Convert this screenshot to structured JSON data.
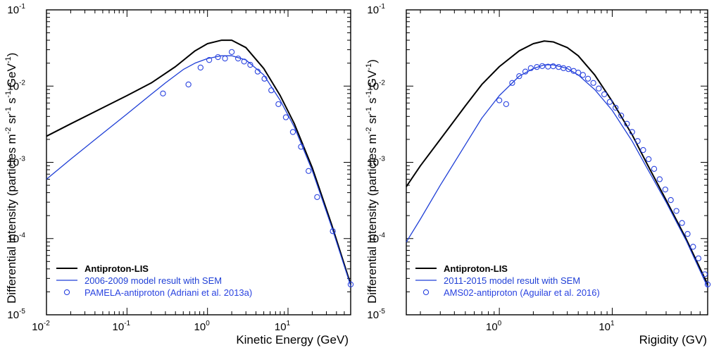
{
  "colors": {
    "lis": "#000000",
    "model": "#1f3fd6",
    "data": "#2a43e0"
  },
  "chart_data": [
    {
      "type": "line",
      "xscale": "log",
      "yscale": "log",
      "xlim": [
        0.01,
        60
      ],
      "ylim": [
        1e-05,
        0.1
      ],
      "xlabel": "Kinetic Energy (GeV)",
      "ylabel": "Differential intensity (particles m-2 sr-1 s-1 GeV-1)",
      "ylabel_parts": [
        "Differential intensity (particles m",
        "-2",
        " sr",
        "-1",
        " s",
        "-1",
        " GeV",
        "-1",
        ")"
      ],
      "xticks": [
        {
          "base": "10",
          "exp": "-2",
          "value": 0.01
        },
        {
          "base": "10",
          "exp": "-1",
          "value": 0.1
        },
        {
          "base": "10",
          "exp": "0",
          "value": 1
        },
        {
          "base": "10",
          "exp": "1",
          "value": 10
        }
      ],
      "yticks": [
        {
          "base": "10",
          "exp": "-5",
          "value": 1e-05
        },
        {
          "base": "10",
          "exp": "-4",
          "value": 0.0001
        },
        {
          "base": "10",
          "exp": "-3",
          "value": 0.001
        },
        {
          "base": "10",
          "exp": "-2",
          "value": 0.01
        },
        {
          "base": "10",
          "exp": "-1",
          "value": 0.1
        }
      ],
      "series": [
        {
          "name": "Antiproton-LIS",
          "kind": "line",
          "x": [
            0.01,
            0.02,
            0.05,
            0.1,
            0.2,
            0.4,
            0.7,
            1.0,
            1.5,
            2.0,
            3.0,
            5.0,
            8.0,
            12.0,
            20.0,
            35.0,
            60.0
          ],
          "y": [
            0.0022,
            0.0032,
            0.0052,
            0.0075,
            0.011,
            0.018,
            0.029,
            0.036,
            0.04,
            0.04,
            0.032,
            0.017,
            0.0075,
            0.0032,
            0.00085,
            0.00015,
            2.5e-05
          ]
        },
        {
          "name": "2006-2009 model result with SEM",
          "kind": "line",
          "x": [
            0.01,
            0.02,
            0.05,
            0.1,
            0.2,
            0.3,
            0.5,
            0.7,
            1.0,
            1.5,
            2.0,
            3.0,
            5.0,
            8.0,
            12.0,
            20.0,
            35.0,
            60.0
          ],
          "y": [
            0.0006,
            0.0011,
            0.0024,
            0.0043,
            0.0078,
            0.011,
            0.0165,
            0.02,
            0.023,
            0.025,
            0.025,
            0.022,
            0.014,
            0.0065,
            0.0029,
            0.00078,
            0.00014,
            2.4e-05
          ]
        },
        {
          "name": "PAMELA-antiproton (Adriani et al. 2013a)",
          "kind": "scatter",
          "x": [
            0.28,
            0.58,
            0.82,
            1.05,
            1.35,
            1.65,
            2.0,
            2.4,
            2.85,
            3.4,
            4.2,
            5.1,
            6.2,
            7.6,
            9.4,
            11.5,
            14.5,
            18.0,
            23.0,
            36.0,
            60.0
          ],
          "y": [
            0.008,
            0.0105,
            0.0175,
            0.022,
            0.024,
            0.023,
            0.028,
            0.023,
            0.021,
            0.019,
            0.0155,
            0.0125,
            0.0088,
            0.0058,
            0.0039,
            0.0025,
            0.0016,
            0.00077,
            0.00035,
            0.000125,
            2.5e-05
          ]
        }
      ],
      "legend": {
        "position": "bottom-left",
        "entries": [
          {
            "label": "Antiproton-LIS",
            "kind": "line"
          },
          {
            "label": "2006-2009 model result with SEM",
            "kind": "line"
          },
          {
            "label": "PAMELA-antiproton (Adriani et al. 2013a)",
            "kind": "marker"
          }
        ]
      }
    },
    {
      "type": "line",
      "xscale": "log",
      "yscale": "log",
      "xlim": [
        0.15,
        70
      ],
      "ylim": [
        1e-05,
        0.1
      ],
      "xlabel": "Rigidity (GV)",
      "ylabel": "Differential intensity (particles m-2 sr-1 s-1 GV-1)",
      "ylabel_parts": [
        "Differential intensity (particles m",
        "-2",
        " sr",
        "-1",
        " s",
        "-1",
        " GV",
        "-1",
        ")"
      ],
      "xticks": [
        {
          "base": "10",
          "exp": "0",
          "value": 1
        },
        {
          "base": "10",
          "exp": "1",
          "value": 10
        }
      ],
      "yticks": [
        {
          "base": "10",
          "exp": "-5",
          "value": 1e-05
        },
        {
          "base": "10",
          "exp": "-4",
          "value": 0.0001
        },
        {
          "base": "10",
          "exp": "-3",
          "value": 0.001
        },
        {
          "base": "10",
          "exp": "-2",
          "value": 0.01
        },
        {
          "base": "10",
          "exp": "-1",
          "value": 0.1
        }
      ],
      "series": [
        {
          "name": "Antiproton-LIS",
          "kind": "line",
          "x": [
            0.15,
            0.2,
            0.3,
            0.5,
            0.7,
            1.0,
            1.5,
            2.0,
            2.5,
            3.0,
            4.0,
            5.0,
            7.0,
            10.0,
            15.0,
            20.0,
            30.0,
            45.0,
            70.0
          ],
          "y": [
            0.00048,
            0.0009,
            0.002,
            0.0055,
            0.0105,
            0.018,
            0.029,
            0.036,
            0.039,
            0.038,
            0.032,
            0.025,
            0.014,
            0.0063,
            0.0023,
            0.001,
            0.00032,
            0.0001,
            2.5e-05
          ]
        },
        {
          "name": "2011-2015 model result with SEM",
          "kind": "line",
          "x": [
            0.15,
            0.2,
            0.3,
            0.5,
            0.7,
            1.0,
            1.5,
            2.0,
            2.5,
            3.0,
            4.0,
            5.0,
            7.0,
            10.0,
            15.0,
            20.0,
            30.0,
            45.0,
            70.0
          ],
          "y": [
            9e-05,
            0.00018,
            0.0005,
            0.0017,
            0.0038,
            0.0075,
            0.0135,
            0.017,
            0.019,
            0.019,
            0.017,
            0.014,
            0.009,
            0.0048,
            0.0019,
            0.00088,
            0.0003,
            9.5e-05,
            2.3e-05
          ]
        },
        {
          "name": "AMS02-antiproton (Aguilar et al. 2016)",
          "kind": "scatter",
          "x": [
            1.0,
            1.15,
            1.3,
            1.5,
            1.7,
            1.9,
            2.15,
            2.4,
            2.7,
            3.0,
            3.35,
            3.7,
            4.1,
            4.55,
            5.0,
            5.5,
            6.1,
            6.8,
            7.6,
            8.5,
            9.5,
            10.7,
            12.0,
            13.5,
            15.0,
            16.8,
            18.8,
            21.0,
            23.5,
            26.3,
            29.5,
            33.0,
            37.0,
            41.5,
            46.5,
            52.0,
            58.0,
            66.0,
            70.0
          ],
          "y": [
            0.0065,
            0.0058,
            0.011,
            0.0135,
            0.0155,
            0.0172,
            0.0178,
            0.0183,
            0.018,
            0.0182,
            0.0178,
            0.0172,
            0.0167,
            0.0158,
            0.015,
            0.014,
            0.0125,
            0.011,
            0.0093,
            0.0078,
            0.0062,
            0.0052,
            0.0041,
            0.0032,
            0.0025,
            0.0019,
            0.00145,
            0.0011,
            0.00082,
            0.0006,
            0.00044,
            0.00032,
            0.00023,
            0.00016,
            0.000115,
            7.8e-05,
            5.5e-05,
            3.4e-05,
            2.5e-05
          ]
        }
      ],
      "legend": {
        "position": "bottom-left",
        "entries": [
          {
            "label": "Antiproton-LIS",
            "kind": "line"
          },
          {
            "label": "2011-2015 model result with SEM",
            "kind": "line"
          },
          {
            "label": "AMS02-antiproton (Aguilar et al. 2016)",
            "kind": "marker"
          }
        ]
      }
    }
  ]
}
